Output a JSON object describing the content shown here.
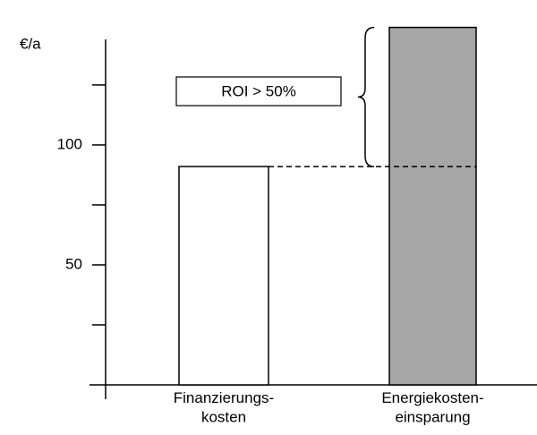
{
  "chart_data": {
    "type": "bar",
    "y_label": "€/a",
    "categories": [
      "Finanzierungs-\nkosten",
      "Energiekosten-\neinsparung"
    ],
    "values": [
      91,
      149
    ],
    "colors": [
      "#ffffff",
      "#a6a6a6"
    ],
    "ylim": [
      0,
      144
    ],
    "yticks": [
      50,
      100
    ],
    "minor_yticks": [
      25,
      75,
      125
    ],
    "annotation": "ROI > 50%"
  }
}
